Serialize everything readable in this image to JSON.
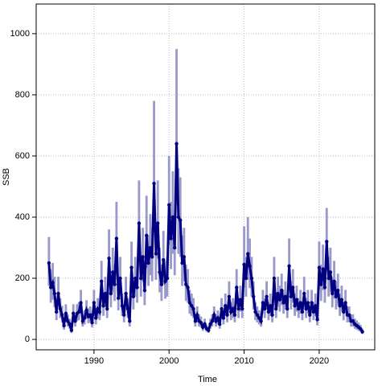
{
  "chart_data": {
    "type": "line",
    "xlabel": "Time",
    "ylabel": "SSB",
    "xlim": [
      1982.3,
      2027.4
    ],
    "ylim": [
      -34,
      1097
    ],
    "xticks": [
      1990,
      2000,
      2010,
      2020
    ],
    "yticks": [
      0,
      200,
      400,
      600,
      800,
      1000
    ],
    "grid": true,
    "x": [
      1984,
      1984.25,
      1984.5,
      1984.75,
      1985,
      1985.25,
      1985.5,
      1985.75,
      1986,
      1986.25,
      1986.5,
      1986.75,
      1987,
      1987.25,
      1987.5,
      1987.75,
      1988,
      1988.25,
      1988.5,
      1988.75,
      1989,
      1989.25,
      1989.5,
      1989.75,
      1990,
      1990.25,
      1990.5,
      1990.75,
      1991,
      1991.25,
      1991.5,
      1991.75,
      1992,
      1992.25,
      1992.5,
      1992.75,
      1993,
      1993.25,
      1993.5,
      1993.75,
      1994,
      1994.25,
      1994.5,
      1994.75,
      1995,
      1995.25,
      1995.5,
      1995.75,
      1996,
      1996.25,
      1996.5,
      1996.75,
      1997,
      1997.25,
      1997.5,
      1997.75,
      1998,
      1998.25,
      1998.5,
      1998.75,
      1999,
      1999.25,
      1999.5,
      1999.75,
      2000,
      2000.25,
      2000.5,
      2000.75,
      2001,
      2001.25,
      2001.5,
      2001.75,
      2002,
      2002.25,
      2002.5,
      2002.75,
      2003,
      2003.25,
      2003.5,
      2003.75,
      2004,
      2004.25,
      2004.5,
      2004.75,
      2005,
      2005.25,
      2005.5,
      2005.75,
      2006,
      2006.25,
      2006.5,
      2006.75,
      2007,
      2007.25,
      2007.5,
      2007.75,
      2008,
      2008.25,
      2008.5,
      2008.75,
      2009,
      2009.25,
      2009.5,
      2009.75,
      2010,
      2010.25,
      2010.5,
      2010.75,
      2011,
      2011.25,
      2011.5,
      2011.75,
      2012,
      2012.25,
      2012.5,
      2012.75,
      2013,
      2013.25,
      2013.5,
      2013.75,
      2014,
      2014.25,
      2014.5,
      2014.75,
      2015,
      2015.25,
      2015.5,
      2015.75,
      2016,
      2016.25,
      2016.5,
      2016.75,
      2017,
      2017.25,
      2017.5,
      2017.75,
      2018,
      2018.25,
      2018.5,
      2018.75,
      2019,
      2019.25,
      2019.5,
      2019.75,
      2020,
      2020.25,
      2020.5,
      2020.75,
      2021,
      2021.25,
      2021.5,
      2021.75,
      2022,
      2022.25,
      2022.5,
      2022.75,
      2023,
      2023.25,
      2023.5,
      2023.75,
      2024,
      2024.25,
      2024.5,
      2024.75,
      2025,
      2025.25,
      2025.5,
      2025.75
    ],
    "series": [
      {
        "color": "#000080",
        "band_color": "#9999cc",
        "values": [
          250,
          170,
          185,
          150,
          90,
          150,
          100,
          80,
          45,
          85,
          60,
          50,
          30,
          85,
          60,
          85,
          90,
          120,
          60,
          70,
          95,
          75,
          80,
          55,
          120,
          70,
          100,
          90,
          190,
          110,
          150,
          100,
          265,
          150,
          220,
          180,
          330,
          135,
          200,
          110,
          80,
          150,
          100,
          60,
          235,
          140,
          200,
          170,
          380,
          200,
          270,
          160,
          340,
          250,
          300,
          270,
          510,
          280,
          380,
          220,
          180,
          260,
          190,
          200,
          440,
          330,
          400,
          300,
          640,
          400,
          390,
          250,
          270,
          180,
          170,
          120,
          110,
          100,
          60,
          80,
          60,
          55,
          40,
          50,
          35,
          30,
          50,
          60,
          80,
          60,
          70,
          50,
          100,
          70,
          110,
          80,
          140,
          90,
          100,
          80,
          170,
          100,
          130,
          100,
          245,
          200,
          280,
          240,
          200,
          140,
          90,
          80,
          70,
          60,
          120,
          100,
          140,
          90,
          110,
          80,
          200,
          100,
          150,
          130,
          160,
          120,
          140,
          100,
          240,
          140,
          170,
          110,
          130,
          100,
          120,
          90,
          150,
          100,
          120,
          80,
          120,
          90,
          110,
          65,
          235,
          180,
          230,
          170,
          320,
          200,
          220,
          150,
          190,
          140,
          160,
          110,
          130,
          90,
          120,
          80,
          80,
          60,
          60,
          50,
          45,
          40,
          35,
          25
        ],
        "upper": [
          335,
          230,
          250,
          205,
          125,
          205,
          135,
          110,
          62,
          115,
          82,
          68,
          42,
          115,
          82,
          115,
          122,
          162,
          82,
          95,
          128,
          102,
          108,
          75,
          162,
          95,
          135,
          122,
          257,
          150,
          205,
          135,
          360,
          205,
          300,
          245,
          450,
          185,
          270,
          150,
          108,
          205,
          135,
          82,
          320,
          190,
          270,
          230,
          520,
          270,
          365,
          215,
          470,
          340,
          410,
          365,
          780,
          380,
          520,
          300,
          245,
          355,
          257,
          270,
          600,
          450,
          550,
          410,
          950,
          560,
          530,
          340,
          365,
          245,
          230,
          162,
          150,
          135,
          82,
          108,
          82,
          75,
          55,
          68,
          48,
          42,
          68,
          82,
          108,
          82,
          95,
          68,
          135,
          95,
          150,
          108,
          190,
          122,
          135,
          108,
          230,
          135,
          176,
          135,
          370,
          270,
          400,
          330,
          270,
          190,
          122,
          108,
          95,
          82,
          162,
          135,
          190,
          122,
          150,
          108,
          270,
          135,
          205,
          176,
          215,
          162,
          190,
          135,
          330,
          190,
          230,
          150,
          176,
          135,
          162,
          122,
          205,
          135,
          162,
          108,
          162,
          122,
          150,
          88,
          320,
          245,
          310,
          230,
          430,
          270,
          300,
          205,
          257,
          190,
          215,
          150,
          176,
          122,
          162,
          108,
          108,
          82,
          82,
          68,
          62,
          55,
          48,
          35
        ],
        "lower": [
          175,
          120,
          130,
          105,
          63,
          105,
          70,
          56,
          32,
          60,
          42,
          35,
          21,
          60,
          42,
          60,
          63,
          84,
          42,
          49,
          67,
          53,
          56,
          39,
          84,
          49,
          70,
          63,
          133,
          77,
          105,
          70,
          185,
          105,
          154,
          126,
          230,
          95,
          140,
          77,
          56,
          105,
          70,
          42,
          165,
          98,
          140,
          120,
          265,
          140,
          190,
          112,
          235,
          175,
          210,
          190,
          350,
          195,
          265,
          154,
          126,
          182,
          133,
          140,
          310,
          230,
          280,
          210,
          440,
          280,
          270,
          175,
          190,
          126,
          120,
          84,
          77,
          70,
          42,
          56,
          42,
          39,
          28,
          35,
          25,
          21,
          35,
          42,
          56,
          42,
          49,
          35,
          70,
          49,
          77,
          56,
          98,
          63,
          70,
          56,
          120,
          70,
          91,
          70,
          170,
          140,
          195,
          168,
          140,
          98,
          63,
          56,
          49,
          42,
          84,
          70,
          98,
          63,
          77,
          56,
          140,
          70,
          105,
          91,
          112,
          84,
          98,
          70,
          168,
          98,
          120,
          77,
          91,
          70,
          84,
          63,
          105,
          70,
          84,
          56,
          84,
          63,
          77,
          46,
          165,
          126,
          161,
          120,
          225,
          140,
          154,
          105,
          133,
          98,
          112,
          77,
          91,
          63,
          84,
          56,
          56,
          42,
          42,
          35,
          32,
          28,
          25,
          18
        ]
      }
    ]
  }
}
